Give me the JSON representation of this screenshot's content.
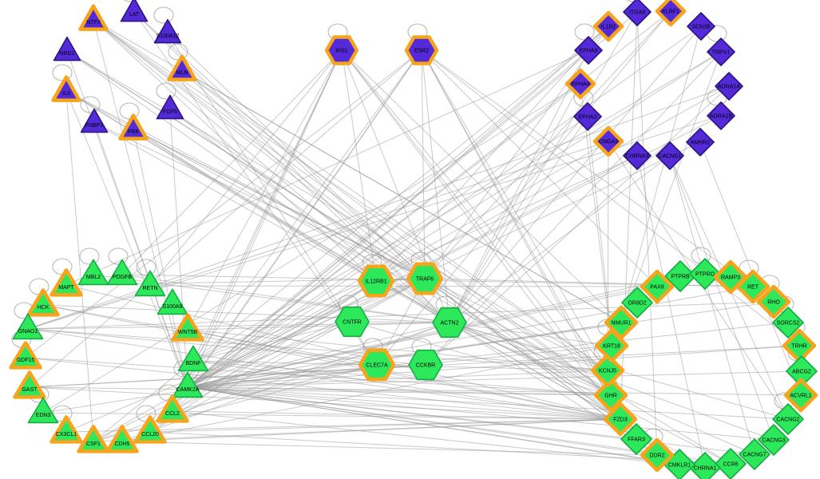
{
  "app": {
    "description": "Gene interaction network graph with four circular clusters and central hub nodes",
    "background": "#ffffff"
  },
  "network": {
    "colors": {
      "purple_fill": "#5429d8",
      "purple_border": "#2c1583",
      "green_fill": "#2ee85c",
      "green_border": "#12ae42",
      "orange_border": "#f7a41d",
      "edge": "#969696",
      "label": "#000000"
    },
    "node_fields": [
      "id",
      "x",
      "y",
      "shape",
      "color",
      "border",
      "self_loop"
    ],
    "nodes": [
      [
        "NTF3",
        117,
        25,
        "triangle",
        "purple",
        "orange",
        0
      ],
      [
        "LAT",
        168,
        15,
        "triangle",
        "purple",
        "default",
        1
      ],
      [
        "S100A12",
        210,
        42,
        "triangle",
        "purple",
        "default",
        1
      ],
      [
        "NRG1",
        84,
        64,
        "triangle",
        "purple",
        "default",
        0
      ],
      [
        "MLN",
        228,
        88,
        "triangle",
        "purple",
        "orange",
        1
      ],
      [
        "IL3",
        83,
        114,
        "triangle",
        "purple",
        "orange",
        1
      ],
      [
        "FGF6",
        213,
        137,
        "triangle",
        "purple",
        "default",
        1
      ],
      [
        "FNBP1",
        118,
        154,
        "triangle",
        "purple",
        "default",
        1
      ],
      [
        "FRK",
        167,
        162,
        "triangle",
        "purple",
        "orange",
        1
      ],
      [
        "IRS1",
        428,
        63,
        "hexagon",
        "purple",
        "orange",
        1
      ],
      [
        "ESR2",
        528,
        63,
        "hexagon",
        "purple",
        "orange",
        1
      ],
      [
        "IL1R2",
        762,
        33,
        "diamond",
        "purple",
        "orange",
        0
      ],
      [
        "ITGA8",
        798,
        15,
        "diamond",
        "purple",
        "default",
        1
      ],
      [
        "KLRF1",
        840,
        14,
        "diamond",
        "purple",
        "orange",
        0
      ],
      [
        "SCN3B",
        878,
        33,
        "diamond",
        "purple",
        "default",
        0
      ],
      [
        "TRPV1",
        903,
        65,
        "diamond",
        "purple",
        "default",
        1
      ],
      [
        "ADRA1A",
        913,
        108,
        "diamond",
        "purple",
        "default",
        0
      ],
      [
        "ADRA1B",
        903,
        145,
        "diamond",
        "purple",
        "default",
        1
      ],
      [
        "AMHR2",
        877,
        178,
        "diamond",
        "purple",
        "default",
        0
      ],
      [
        "CACNG1",
        839,
        195,
        "diamond",
        "purple",
        "default",
        0
      ],
      [
        "CHRNA3",
        798,
        195,
        "diamond",
        "purple",
        "default",
        0
      ],
      [
        "CNGA3",
        762,
        177,
        "diamond",
        "purple",
        "orange",
        0
      ],
      [
        "EPHA3",
        736,
        146,
        "diamond",
        "purple",
        "default",
        1
      ],
      [
        "EPHA4",
        727,
        105,
        "diamond",
        "purple",
        "orange",
        0
      ],
      [
        "EPHA8",
        737,
        63,
        "diamond",
        "purple",
        "default",
        1
      ],
      [
        "IL12RB1",
        471,
        352,
        "hexagon",
        "green",
        "orange",
        1
      ],
      [
        "TRAF6",
        532,
        349,
        "hexagon",
        "green",
        "orange",
        1
      ],
      [
        "CNTFR",
        441,
        403,
        "hexagon",
        "green",
        "default",
        1
      ],
      [
        "ACTN2",
        563,
        404,
        "hexagon",
        "green",
        "default",
        1
      ],
      [
        "CLEC7A",
        472,
        457,
        "hexagon",
        "green",
        "orange",
        1
      ],
      [
        "CCKBR",
        533,
        457,
        "hexagon",
        "green",
        "default",
        1
      ],
      [
        "MBL2",
        117,
        344,
        "triangle",
        "green",
        "default",
        1
      ],
      [
        "PDGFB",
        153,
        344,
        "triangle",
        "green",
        "default",
        1
      ],
      [
        "MAPT",
        83,
        357,
        "triangle",
        "green",
        "orange",
        1
      ],
      [
        "RETN",
        188,
        358,
        "triangle",
        "green",
        "default",
        1
      ],
      [
        "HCK",
        54,
        382,
        "triangle",
        "green",
        "orange",
        1
      ],
      [
        "S100A9",
        216,
        381,
        "triangle",
        "green",
        "default",
        0
      ],
      [
        "GNAO1",
        35,
        412,
        "triangle",
        "green",
        "default",
        1
      ],
      [
        "WNT5B",
        235,
        413,
        "triangle",
        "green",
        "orange",
        0
      ],
      [
        "GDF15",
        32,
        448,
        "triangle",
        "green",
        "orange",
        1
      ],
      [
        "BDNF",
        242,
        452,
        "triangle",
        "green",
        "default",
        0
      ],
      [
        "GAST",
        37,
        485,
        "triangle",
        "green",
        "orange",
        0
      ],
      [
        "CAMK2A",
        235,
        485,
        "triangle",
        "green",
        "default",
        1
      ],
      [
        "EDN3",
        54,
        517,
        "triangle",
        "green",
        "default",
        1
      ],
      [
        "CCL2",
        216,
        515,
        "triangle",
        "green",
        "orange",
        1
      ],
      [
        "CX3CL1",
        83,
        541,
        "triangle",
        "green",
        "orange",
        1
      ],
      [
        "CCL20",
        188,
        541,
        "triangle",
        "green",
        "orange",
        1
      ],
      [
        "CSF1",
        117,
        553,
        "triangle",
        "green",
        "orange",
        0
      ],
      [
        "CDH5",
        153,
        553,
        "triangle",
        "green",
        "orange",
        0
      ],
      [
        "PTPRB",
        852,
        346,
        "diamond",
        "green",
        "default",
        0
      ],
      [
        "PTPRO",
        883,
        343,
        "diamond",
        "green",
        "default",
        1
      ],
      [
        "RAMP3",
        915,
        347,
        "diamond",
        "green",
        "orange",
        0
      ],
      [
        "RET",
        943,
        359,
        "diamond",
        "green",
        "orange",
        1
      ],
      [
        "RHO",
        969,
        378,
        "diamond",
        "green",
        "orange",
        1
      ],
      [
        "SORCS2",
        987,
        404,
        "diamond",
        "green",
        "default",
        1
      ],
      [
        "TRHR",
        1001,
        433,
        "diamond",
        "green",
        "orange",
        1
      ],
      [
        "ABCG2",
        1004,
        465,
        "diamond",
        "green",
        "default",
        1
      ],
      [
        "ACVRL1",
        1003,
        495,
        "diamond",
        "green",
        "orange",
        0
      ],
      [
        "CACNG2",
        987,
        525,
        "diamond",
        "green",
        "default",
        1
      ],
      [
        "CACNG3",
        969,
        551,
        "diamond",
        "green",
        "default",
        0
      ],
      [
        "CACNG7",
        945,
        569,
        "diamond",
        "green",
        "default",
        0
      ],
      [
        "CCR6",
        915,
        581,
        "diamond",
        "green",
        "default",
        0
      ],
      [
        "CHRNA1",
        883,
        586,
        "diamond",
        "green",
        "default",
        0
      ],
      [
        "CMKLR1",
        851,
        582,
        "diamond",
        "green",
        "default",
        0
      ],
      [
        "DDR2",
        823,
        570,
        "diamond",
        "green",
        "orange",
        1
      ],
      [
        "FFAR3",
        797,
        550,
        "diamond",
        "green",
        "default",
        0
      ],
      [
        "FZD3",
        777,
        525,
        "diamond",
        "green",
        "orange",
        0
      ],
      [
        "GHR",
        765,
        495,
        "diamond",
        "green",
        "orange",
        0
      ],
      [
        "KCNJ5",
        761,
        464,
        "diamond",
        "green",
        "orange",
        1
      ],
      [
        "KRT18",
        766,
        433,
        "diamond",
        "green",
        "orange",
        1
      ],
      [
        "NMUR1",
        778,
        404,
        "diamond",
        "green",
        "orange",
        0
      ],
      [
        "OR8D2",
        798,
        379,
        "diamond",
        "green",
        "default",
        0
      ],
      [
        "PAX8",
        823,
        359,
        "diamond",
        "green",
        "orange",
        0
      ]
    ],
    "edges": [
      [
        "NTF3",
        "TRAF6"
      ],
      [
        "NTF3",
        "ACTN2"
      ],
      [
        "NTF3",
        "IL12RB1"
      ],
      [
        "NTF3",
        "KCNJ5"
      ],
      [
        "NTF3",
        "GHR"
      ],
      [
        "NTF3",
        "NMUR1"
      ],
      [
        "NTF3",
        "FZD3"
      ],
      [
        "NTF3",
        "CAMK2A"
      ],
      [
        "LAT",
        "TRAF6"
      ],
      [
        "LAT",
        "ACTN2"
      ],
      [
        "LAT",
        "CLEC7A"
      ],
      [
        "S100A12",
        "TRAF6"
      ],
      [
        "S100A12",
        "CLEC7A"
      ],
      [
        "NRG1",
        "ACTN2"
      ],
      [
        "NRG1",
        "CAMK2A"
      ],
      [
        "NRG1",
        "TRAF6"
      ],
      [
        "NRG1",
        "KCNJ5"
      ],
      [
        "NRG1",
        "GHR"
      ],
      [
        "MLN",
        "GHR"
      ],
      [
        "MLN",
        "NMUR1"
      ],
      [
        "MLN",
        "ACTN2"
      ],
      [
        "MLN",
        "KCNJ5"
      ],
      [
        "IL3",
        "IL12RB1"
      ],
      [
        "IL3",
        "TRAF6"
      ],
      [
        "IL3",
        "CSF1"
      ],
      [
        "IL3",
        "CAMK2A"
      ],
      [
        "IL3",
        "ACTN2"
      ],
      [
        "IL3",
        "GHR"
      ],
      [
        "FGF6",
        "ACTN2"
      ],
      [
        "FGF6",
        "CAMK2A"
      ],
      [
        "FGF6",
        "FZD3"
      ],
      [
        "FNBP1",
        "ACTN2"
      ],
      [
        "FNBP1",
        "CAMK2A"
      ],
      [
        "FNBP1",
        "TRAF6"
      ],
      [
        "FRK",
        "ACTN2"
      ],
      [
        "FRK",
        "TRAF6"
      ],
      [
        "FRK",
        "IL12RB1"
      ],
      [
        "FRK",
        "CAMK2A"
      ],
      [
        "FRK",
        "KCNJ5"
      ],
      [
        "IRS1",
        "BDNF"
      ],
      [
        "IRS1",
        "CAMK2A"
      ],
      [
        "IRS1",
        "WNT5B"
      ],
      [
        "IRS1",
        "CCL2"
      ],
      [
        "IRS1",
        "RETN"
      ],
      [
        "IRS1",
        "GHR"
      ],
      [
        "IRS1",
        "KCNJ5"
      ],
      [
        "IRS1",
        "FZD3"
      ],
      [
        "IRS1",
        "NMUR1"
      ],
      [
        "IRS1",
        "ACTN2"
      ],
      [
        "IRS1",
        "IL12RB1"
      ],
      [
        "IRS1",
        "PDGFB"
      ],
      [
        "ESR2",
        "BDNF"
      ],
      [
        "ESR2",
        "CAMK2A"
      ],
      [
        "ESR2",
        "GAST"
      ],
      [
        "ESR2",
        "GDF15"
      ],
      [
        "ESR2",
        "CCL2"
      ],
      [
        "ESR2",
        "FZD3"
      ],
      [
        "ESR2",
        "GHR"
      ],
      [
        "ESR2",
        "KCNJ5"
      ],
      [
        "ESR2",
        "TRHR"
      ],
      [
        "ESR2",
        "RET"
      ],
      [
        "ESR2",
        "PAX8"
      ],
      [
        "ESR2",
        "ACTN2"
      ],
      [
        "ESR2",
        "TRAF6"
      ],
      [
        "IL1R2",
        "CAMK2A"
      ],
      [
        "IL1R2",
        "CCL2"
      ],
      [
        "IL1R2",
        "CSF1"
      ],
      [
        "IL1R2",
        "IL12RB1"
      ],
      [
        "IL1R2",
        "TRAF6"
      ],
      [
        "ITGA8",
        "CAMK2A"
      ],
      [
        "ITGA8",
        "ACTN2"
      ],
      [
        "ITGA8",
        "FZD3"
      ],
      [
        "ITGA8",
        "DDR2"
      ],
      [
        "KLRF1",
        "CLEC7A"
      ],
      [
        "KLRF1",
        "TRAF6"
      ],
      [
        "KLRF1",
        "CAMK2A"
      ],
      [
        "SCN3B",
        "CAMK2A"
      ],
      [
        "SCN3B",
        "ACTN2"
      ],
      [
        "SCN3B",
        "KCNJ5"
      ],
      [
        "TRPV1",
        "CAMK2A"
      ],
      [
        "TRPV1",
        "BDNF"
      ],
      [
        "TRPV1",
        "CCKBR"
      ],
      [
        "TRPV1",
        "NMUR1"
      ],
      [
        "ADRA1A",
        "GNAO1"
      ],
      [
        "ADRA1A",
        "CAMK2A"
      ],
      [
        "ADRA1A",
        "CCKBR"
      ],
      [
        "ADRA1B",
        "GNAO1"
      ],
      [
        "ADRA1B",
        "CAMK2A"
      ],
      [
        "AMHR2",
        "ACVRL1"
      ],
      [
        "AMHR2",
        "CAMK2A"
      ],
      [
        "CACNG1",
        "CACNG2"
      ],
      [
        "CACNG1",
        "CACNG3"
      ],
      [
        "CACNG1",
        "CACNG7"
      ],
      [
        "CACNG1",
        "ACTN2"
      ],
      [
        "CHRNA3",
        "CHRNA1"
      ],
      [
        "CHRNA3",
        "CAMK2A"
      ],
      [
        "CHRNA3",
        "BDNF"
      ],
      [
        "CNGA3",
        "GNAO1"
      ],
      [
        "CNGA3",
        "CAMK2A"
      ],
      [
        "CNGA3",
        "KCNJ5"
      ],
      [
        "CNGA3",
        "CACNG2"
      ],
      [
        "EPHA3",
        "CAMK2A"
      ],
      [
        "EPHA3",
        "FZD3"
      ],
      [
        "EPHA3",
        "ACTN2"
      ],
      [
        "EPHA4",
        "CAMK2A"
      ],
      [
        "EPHA4",
        "EDN3"
      ],
      [
        "EPHA4",
        "FZD3"
      ],
      [
        "EPHA4",
        "ACTN2"
      ],
      [
        "EPHA8",
        "CAMK2A"
      ],
      [
        "EPHA8",
        "MAPT"
      ],
      [
        "EPHA8",
        "ACTN2"
      ],
      [
        "IL12RB1",
        "TRAF6"
      ],
      [
        "IL12RB1",
        "CSF1"
      ],
      [
        "IL12RB1",
        "CCL2"
      ],
      [
        "IL12RB1",
        "CCL20"
      ],
      [
        "IL12RB1",
        "CCR6"
      ],
      [
        "TRAF6",
        "CLEC7A"
      ],
      [
        "TRAF6",
        "CCL2"
      ],
      [
        "TRAF6",
        "CSF1"
      ],
      [
        "TRAF6",
        "CCL20"
      ],
      [
        "TRAF6",
        "CX3CL1"
      ],
      [
        "TRAF6",
        "RET"
      ],
      [
        "TRAF6",
        "DDR2"
      ],
      [
        "TRAF6",
        "FFAR3"
      ],
      [
        "TRAF6",
        "CCR6"
      ],
      [
        "TRAF6",
        "CMKLR1"
      ],
      [
        "TRAF6",
        "BDNF"
      ],
      [
        "TRAF6",
        "MAPT"
      ],
      [
        "CNTFR",
        "BDNF"
      ],
      [
        "CNTFR",
        "CAMK2A"
      ],
      [
        "CNTFR",
        "GHR"
      ],
      [
        "CNTFR",
        "ACTN2"
      ],
      [
        "ACTN2",
        "CAMK2A"
      ],
      [
        "ACTN2",
        "GHR"
      ],
      [
        "ACTN2",
        "KCNJ5"
      ],
      [
        "ACTN2",
        "FZD3"
      ],
      [
        "ACTN2",
        "DDR2"
      ],
      [
        "ACTN2",
        "KRT18"
      ],
      [
        "ACTN2",
        "CACNG2"
      ],
      [
        "ACTN2",
        "CACNG3"
      ],
      [
        "ACTN2",
        "CACNG7"
      ],
      [
        "ACTN2",
        "CHRNA1"
      ],
      [
        "ACTN2",
        "PDGFB"
      ],
      [
        "ACTN2",
        "HCK"
      ],
      [
        "ACTN2",
        "WNT5B"
      ],
      [
        "ACTN2",
        "GNAO1"
      ],
      [
        "ACTN2",
        "CDH5"
      ],
      [
        "ACTN2",
        "CSF1"
      ],
      [
        "ACTN2",
        "MBL2"
      ],
      [
        "CLEC7A",
        "CSF1"
      ],
      [
        "CLEC7A",
        "HCK"
      ],
      [
        "CLEC7A",
        "CCL2"
      ],
      [
        "CCKBR",
        "GAST"
      ],
      [
        "CCKBR",
        "GNAO1"
      ],
      [
        "CCKBR",
        "CAMK2A"
      ],
      [
        "CAMK2A",
        "FZD3"
      ],
      [
        "CAMK2A",
        "GHR"
      ],
      [
        "CAMK2A",
        "KCNJ5"
      ],
      [
        "CAMK2A",
        "KRT18"
      ],
      [
        "CAMK2A",
        "NMUR1"
      ],
      [
        "CAMK2A",
        "DDR2"
      ],
      [
        "CAMK2A",
        "FFAR3"
      ],
      [
        "CAMK2A",
        "CMKLR1"
      ],
      [
        "CAMK2A",
        "CHRNA1"
      ],
      [
        "CAMK2A",
        "CCR6"
      ],
      [
        "CAMK2A",
        "CACNG7"
      ],
      [
        "CAMK2A",
        "CACNG3"
      ],
      [
        "CAMK2A",
        "CACNG2"
      ],
      [
        "CAMK2A",
        "ACVRL1"
      ],
      [
        "CAMK2A",
        "TRHR"
      ],
      [
        "CAMK2A",
        "RHO"
      ],
      [
        "CAMK2A",
        "RET"
      ],
      [
        "CAMK2A",
        "PTPRO"
      ],
      [
        "CAMK2A",
        "PTPRB"
      ],
      [
        "CAMK2A",
        "PAX8"
      ],
      [
        "CAMK2A",
        "SORCS2"
      ],
      [
        "CAMK2A",
        "ABCG2"
      ],
      [
        "FZD3",
        "CSF1"
      ],
      [
        "FZD3",
        "CDH5"
      ],
      [
        "FZD3",
        "CCL20"
      ],
      [
        "FZD3",
        "CX3CL1"
      ],
      [
        "FZD3",
        "EDN3"
      ],
      [
        "FZD3",
        "GAST"
      ],
      [
        "FZD3",
        "GDF15"
      ],
      [
        "FZD3",
        "GNAO1"
      ],
      [
        "FZD3",
        "HCK"
      ],
      [
        "FZD3",
        "MAPT"
      ],
      [
        "FZD3",
        "WNT5B"
      ],
      [
        "FZD3",
        "CCL2"
      ],
      [
        "FZD3",
        "BDNF"
      ],
      [
        "KCNJ5",
        "GNAO1"
      ],
      [
        "KCNJ5",
        "WNT5B"
      ],
      [
        "KCNJ5",
        "BDNF"
      ],
      [
        "GHR",
        "GDF15"
      ],
      [
        "GHR",
        "GAST"
      ],
      [
        "GHR",
        "BDNF"
      ],
      [
        "KRT18",
        "CDH5"
      ],
      [
        "NMUR1",
        "EDN3"
      ],
      [
        "PAX8",
        "RETN"
      ],
      [
        "RET",
        "PDGFB"
      ],
      [
        "RHO",
        "GNAO1"
      ],
      [
        "TRHR",
        "GAST"
      ],
      [
        "DDR2",
        "CDH5"
      ],
      [
        "CMKLR1",
        "CCL2"
      ],
      [
        "CCR6",
        "CCL20"
      ]
    ]
  }
}
